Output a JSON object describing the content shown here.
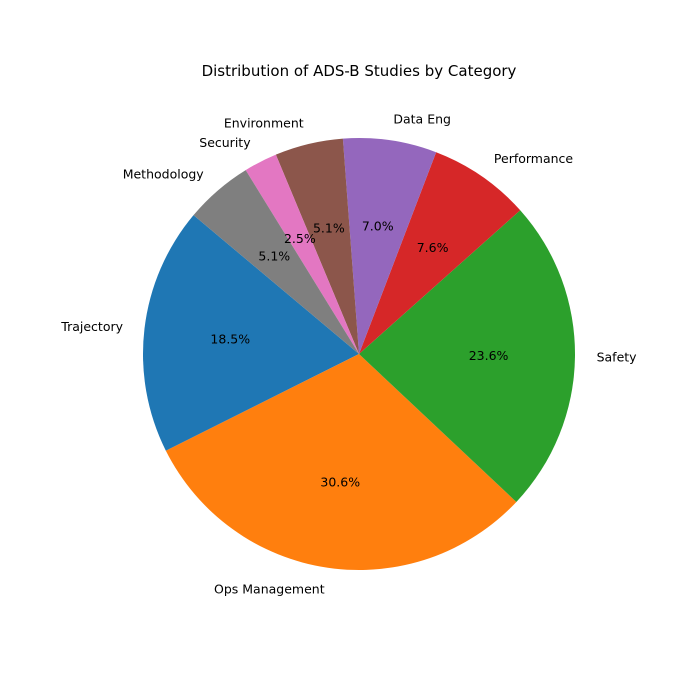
{
  "chart_data": {
    "type": "pie",
    "title": "Distribution of ADS-B Studies by Category",
    "start_angle_deg": 140,
    "direction": "counterclockwise",
    "legend": "none",
    "slices": [
      {
        "label": "Trajectory",
        "value": 18.5,
        "pct_label": "18.5%",
        "color": "#1f77b4"
      },
      {
        "label": "Ops Management",
        "value": 30.6,
        "pct_label": "30.6%",
        "color": "#ff7f0e"
      },
      {
        "label": "Safety",
        "value": 23.6,
        "pct_label": "23.6%",
        "color": "#2ca02c"
      },
      {
        "label": "Performance",
        "value": 7.6,
        "pct_label": "7.6%",
        "color": "#d62728"
      },
      {
        "label": "Data Eng",
        "value": 7.0,
        "pct_label": "7.0%",
        "color": "#9467bd"
      },
      {
        "label": "Environment",
        "value": 5.1,
        "pct_label": "5.1%",
        "color": "#8c564b"
      },
      {
        "label": "Security",
        "value": 2.5,
        "pct_label": "2.5%",
        "color": "#e377c2"
      },
      {
        "label": "Methodology",
        "value": 5.1,
        "pct_label": "5.1%",
        "color": "#7f7f7f"
      }
    ]
  }
}
